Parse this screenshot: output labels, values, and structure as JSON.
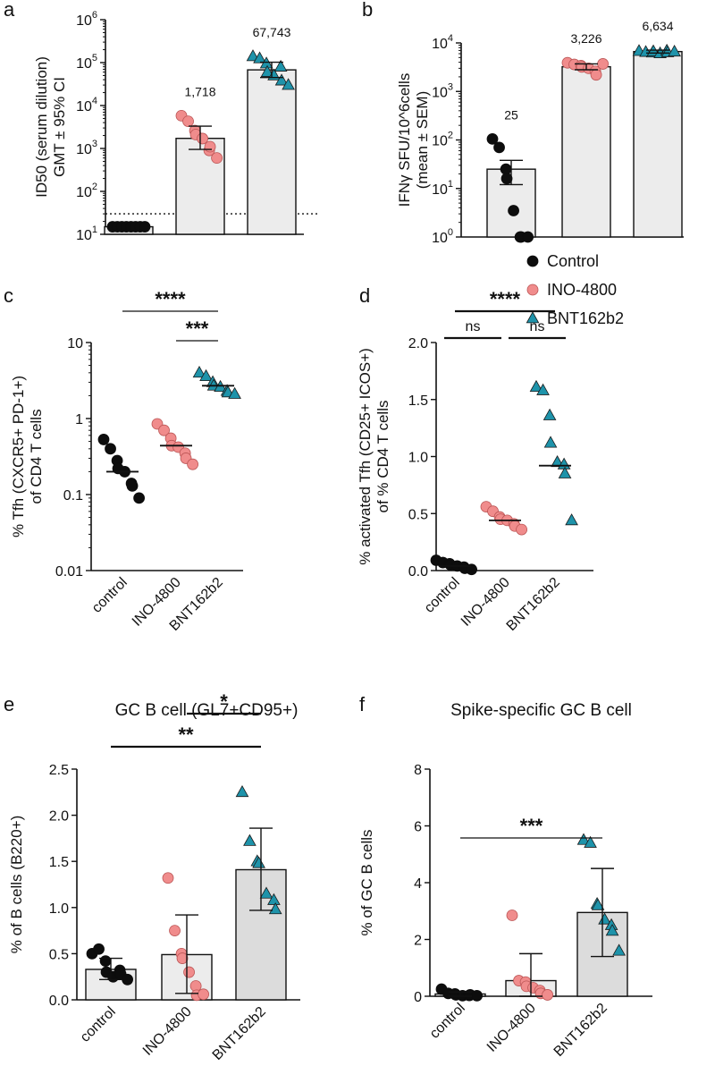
{
  "legend": {
    "items": [
      {
        "label": "Control",
        "color": "#0d0d0d",
        "shape": "circle"
      },
      {
        "label": "INO-4800",
        "color": "#f08c8c",
        "shape": "circle"
      },
      {
        "label": "BNT162b2",
        "color": "#1e93aa",
        "shape": "triangle"
      }
    ]
  },
  "colors": {
    "control": "#0d0d0d",
    "ino": "#f08c8c",
    "bnt": "#1e93aa",
    "bar": "#ececec",
    "bar_dark": "#dcdcdc"
  },
  "chart_data": [
    {
      "panel": "a",
      "type": "bar",
      "scale": "log",
      "ylabel_lines": [
        "ID50 (serum dilution)",
        "GMT ± 95% CI"
      ],
      "ylim": [
        10,
        1000000
      ],
      "yticks": [
        {
          "v": 10,
          "base": "10",
          "exp": "1"
        },
        {
          "v": 100,
          "base": "10",
          "exp": "2"
        },
        {
          "v": 1000,
          "base": "10",
          "exp": "3"
        },
        {
          "v": 10000,
          "base": "10",
          "exp": "4"
        },
        {
          "v": 100000,
          "base": "10",
          "exp": "5"
        },
        {
          "v": 1000000,
          "base": "10",
          "exp": "6"
        }
      ],
      "categories": [
        "Control",
        "INO-4800",
        "BNT162b2"
      ],
      "bar_values": [
        15,
        1718,
        67743
      ],
      "bar_labels": [
        "",
        "1,718",
        "67,743"
      ],
      "error_bars": [
        [
          15,
          15
        ],
        [
          950,
          3300
        ],
        [
          45000,
          102000
        ]
      ],
      "reference_line": 30,
      "points": [
        [
          15,
          15,
          15,
          15,
          15,
          15,
          15,
          15
        ],
        [
          5800,
          4300,
          2600,
          2100,
          1700,
          900,
          1100,
          600
        ],
        [
          140000,
          125000,
          95000,
          60000,
          50000,
          80000,
          38000,
          30000
        ]
      ]
    },
    {
      "panel": "b",
      "type": "bar",
      "scale": "log",
      "ylabel_lines": [
        "IFNγ SFU/10^6cells",
        "(mean ± SEM)"
      ],
      "ylim": [
        1,
        10000
      ],
      "yticks": [
        {
          "v": 1,
          "base": "10",
          "exp": "0"
        },
        {
          "v": 10,
          "base": "10",
          "exp": "1"
        },
        {
          "v": 100,
          "base": "10",
          "exp": "2"
        },
        {
          "v": 1000,
          "base": "10",
          "exp": "3"
        },
        {
          "v": 10000,
          "base": "10",
          "exp": "4"
        }
      ],
      "categories": [
        "Control",
        "INO-4800",
        "BNT162b2"
      ],
      "bar_values": [
        25,
        3226,
        6634
      ],
      "bar_labels": [
        "25",
        "3,226",
        "6,634"
      ],
      "error_bars": [
        [
          12,
          38
        ],
        [
          2800,
          3700
        ],
        [
          6200,
          7100
        ]
      ],
      "points": [
        [
          105,
          70,
          25,
          16,
          3.5,
          1,
          1,
          1
        ],
        [
          3900,
          3600,
          3400,
          3200,
          3000,
          2600,
          2200,
          3700
        ],
        [
          6800,
          6500,
          6300,
          6700,
          6100,
          6900,
          6400,
          6600
        ]
      ]
    },
    {
      "panel": "c",
      "type": "scatter",
      "scale": "log",
      "ylabel_lines": [
        "% Tfh (CXCR5+ PD-1+)",
        "of CD4 T cells"
      ],
      "ylim": [
        0.01,
        10
      ],
      "yticks": [
        {
          "v": 0.01,
          "label": "0.01"
        },
        {
          "v": 0.1,
          "label": "0.1"
        },
        {
          "v": 1,
          "label": "1"
        },
        {
          "v": 10,
          "label": "10"
        }
      ],
      "categories": [
        "control",
        "INO-4800",
        "BNT162b2"
      ],
      "medians": [
        0.2,
        0.44,
        2.7
      ],
      "points": [
        [
          0.53,
          0.4,
          0.28,
          0.22,
          0.2,
          0.14,
          0.13,
          0.09
        ],
        [
          0.85,
          0.7,
          0.55,
          0.44,
          0.42,
          0.35,
          0.3,
          0.25
        ],
        [
          4.0,
          3.6,
          3.0,
          2.7,
          2.6,
          2.3,
          2.2,
          2.1
        ]
      ],
      "significance": [
        {
          "label": "****",
          "from": 0,
          "to": 2
        },
        {
          "label": "***",
          "from": 1,
          "to": 2
        }
      ]
    },
    {
      "panel": "d",
      "type": "scatter",
      "scale": "linear",
      "ylabel_lines": [
        "% activated Tfh (CD25+ ICOS+)",
        "of % CD4 T cells"
      ],
      "ylim": [
        0,
        2.0
      ],
      "yticks": [
        {
          "v": 0,
          "label": "0.0"
        },
        {
          "v": 0.5,
          "label": "0.5"
        },
        {
          "v": 1.0,
          "label": "1.0"
        },
        {
          "v": 1.5,
          "label": "1.5"
        },
        {
          "v": 2.0,
          "label": "2.0"
        }
      ],
      "categories": [
        "control",
        "INO-4800",
        "BNT162b2"
      ],
      "medians": [
        0.04,
        0.44,
        0.92
      ],
      "points": [
        [
          0.09,
          0.07,
          0.06,
          0.05,
          0.04,
          0.03,
          0.02,
          0.01
        ],
        [
          0.56,
          0.52,
          0.47,
          0.45,
          0.44,
          0.41,
          0.39,
          0.36
        ],
        [
          1.61,
          1.58,
          1.36,
          1.12,
          0.95,
          0.93,
          0.85,
          0.44
        ]
      ],
      "significance": [
        {
          "label": "****",
          "from": 0,
          "to": 2
        },
        {
          "label": "ns",
          "from": 0,
          "to": 1
        },
        {
          "label": "ns",
          "from": 1,
          "to": 2
        }
      ]
    },
    {
      "panel": "e",
      "type": "bar",
      "scale": "linear",
      "title": "GC B cell (GL7+CD95+)",
      "ylabel_lines": [
        "% of B cells (B220+)"
      ],
      "ylim": [
        0,
        2.5
      ],
      "yticks": [
        {
          "v": 0,
          "label": "0.0"
        },
        {
          "v": 0.5,
          "label": "0.5"
        },
        {
          "v": 1.0,
          "label": "1.0"
        },
        {
          "v": 1.5,
          "label": "1.5"
        },
        {
          "v": 2.0,
          "label": "2.0"
        },
        {
          "v": 2.5,
          "label": "2.5"
        }
      ],
      "categories": [
        "control",
        "INO-4800",
        "BNT162b2"
      ],
      "bar_values": [
        0.33,
        0.49,
        1.41
      ],
      "error_bars": [
        [
          0.22,
          0.45
        ],
        [
          0.07,
          0.92
        ],
        [
          0.97,
          1.86
        ]
      ],
      "points": [
        [
          0.5,
          0.55,
          0.42,
          0.3,
          0.25,
          0.32,
          0.28,
          0.22
        ],
        [
          1.32,
          0.75,
          0.5,
          0.45,
          0.3,
          0.15,
          0.05,
          0.06
        ],
        [
          2.25,
          1.72,
          1.5,
          1.48,
          1.15,
          1.08,
          0.98
        ]
      ],
      "significance": [
        {
          "label": "**",
          "from": 0,
          "to": 2
        },
        {
          "label": "*",
          "from": 1,
          "to": 2
        }
      ]
    },
    {
      "panel": "f",
      "type": "bar",
      "scale": "linear",
      "title": "Spike-specific GC B cell",
      "ylabel_lines": [
        "% of GC B cells"
      ],
      "ylim": [
        0,
        8
      ],
      "yticks": [
        {
          "v": 0,
          "label": "0"
        },
        {
          "v": 2,
          "label": "2"
        },
        {
          "v": 4,
          "label": "4"
        },
        {
          "v": 6,
          "label": "6"
        },
        {
          "v": 8,
          "label": "8"
        }
      ],
      "categories": [
        "control",
        "INO-4800",
        "BNT162b2"
      ],
      "bar_values": [
        0.08,
        0.55,
        2.95
      ],
      "error_bars": [
        [
          0,
          0.15
        ],
        [
          0,
          1.5
        ],
        [
          1.4,
          4.5
        ]
      ],
      "points": [
        [
          0.25,
          0.1,
          0.08,
          0.05,
          0.02,
          0.03,
          0.05,
          0.02
        ],
        [
          2.85,
          0.55,
          0.5,
          0.35,
          0.3,
          0.2,
          0.1,
          0.05
        ],
        [
          5.5,
          5.4,
          3.25,
          3.2,
          2.7,
          2.5,
          2.3,
          1.6
        ]
      ],
      "significance": [
        {
          "label": "***",
          "from": 0,
          "to": 2
        }
      ]
    }
  ]
}
